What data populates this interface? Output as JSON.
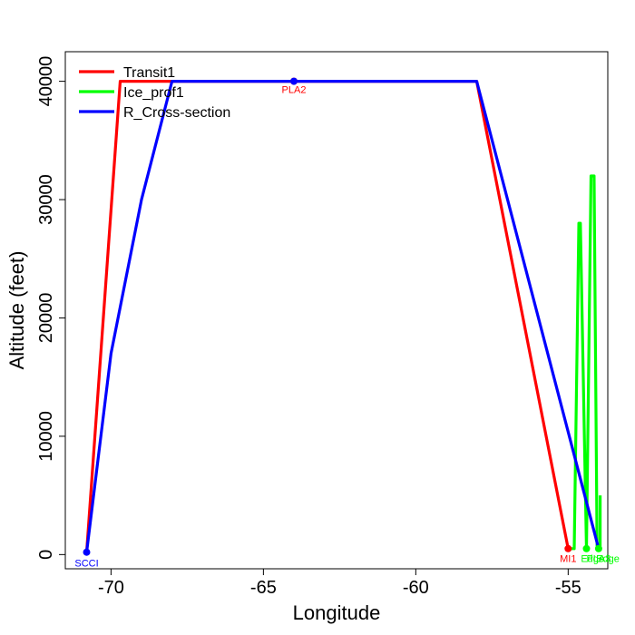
{
  "chart_data": {
    "type": "line",
    "title": "",
    "xlabel": "Longitude",
    "ylabel": "Altitude (feet)",
    "xlim": [
      -71.5,
      -53.7
    ],
    "ylim": [
      -1200,
      42500
    ],
    "xticks": [
      -70,
      -65,
      -60,
      -55
    ],
    "yticks": [
      0,
      10000,
      20000,
      30000,
      40000
    ],
    "legend": {
      "position": "top-left",
      "entries": [
        "Transit1",
        "Ice_prof1",
        "R_Cross-section"
      ]
    },
    "series": [
      {
        "name": "Transit1",
        "color": "#ff0000",
        "points": [
          [
            -70.8,
            200
          ],
          [
            -69.7,
            40000
          ],
          [
            -58.0,
            40000
          ],
          [
            -55.0,
            500
          ]
        ]
      },
      {
        "name": "Ice_prof1",
        "color": "#00ff00",
        "points": [
          [
            -55.0,
            500
          ],
          [
            -54.8,
            500
          ],
          [
            -54.65,
            28000
          ],
          [
            -54.6,
            28000
          ],
          [
            -54.4,
            500
          ],
          [
            -54.25,
            32000
          ],
          [
            -54.15,
            32000
          ],
          [
            -54.05,
            500
          ],
          [
            -53.95,
            500
          ],
          [
            -53.95,
            5000
          ]
        ]
      },
      {
        "name": "R_Cross-section",
        "color": "#0000ff",
        "points": [
          [
            -70.8,
            200
          ],
          [
            -70.0,
            17000
          ],
          [
            -69.0,
            30000
          ],
          [
            -68.0,
            40000
          ],
          [
            -58.0,
            40000
          ],
          [
            -54.0,
            500
          ]
        ]
      }
    ],
    "markers": [
      {
        "x": -70.8,
        "y": 200,
        "color": "#0000ff"
      },
      {
        "x": -64.0,
        "y": 40000,
        "color": "#ff0000"
      },
      {
        "x": -64.0,
        "y": 40000,
        "color": "#0000ff"
      },
      {
        "x": -55.0,
        "y": 500,
        "color": "#ff0000"
      },
      {
        "x": -54.4,
        "y": 500,
        "color": "#00ff00"
      },
      {
        "x": -54.0,
        "y": 500,
        "color": "#00ff00"
      }
    ],
    "point_labels": [
      {
        "text": "SCCI",
        "x": -70.8,
        "y": -700,
        "color": "#0000ff"
      },
      {
        "text": "PLA2",
        "x": -64.0,
        "y": 39300,
        "color": "#ff0000"
      },
      {
        "text": "MI1",
        "x": -55.0,
        "y": -300,
        "color": "#ff0000"
      },
      {
        "text": "Edge",
        "x": -54.2,
        "y": -300,
        "color": "#00ff00"
      },
      {
        "text": "PLA3",
        "x": -54.0,
        "y": -300,
        "color": "#00ff00"
      },
      {
        "text": "Edge",
        "x": -53.7,
        "y": -300,
        "color": "#00ff00"
      }
    ]
  }
}
